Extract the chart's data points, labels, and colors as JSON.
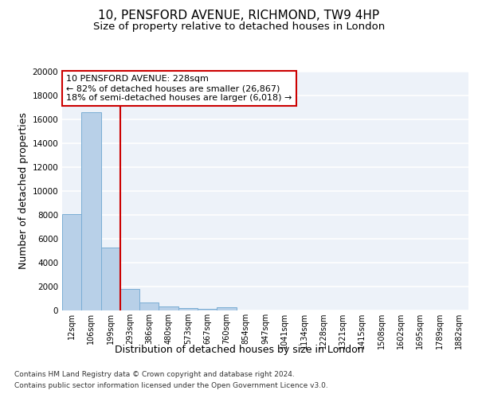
{
  "title1": "10, PENSFORD AVENUE, RICHMOND, TW9 4HP",
  "title2": "Size of property relative to detached houses in London",
  "xlabel": "Distribution of detached houses by size in London",
  "ylabel": "Number of detached properties",
  "categories": [
    "12sqm",
    "106sqm",
    "199sqm",
    "293sqm",
    "386sqm",
    "480sqm",
    "573sqm",
    "667sqm",
    "760sqm",
    "854sqm",
    "947sqm",
    "1041sqm",
    "1134sqm",
    "1228sqm",
    "1321sqm",
    "1415sqm",
    "1508sqm",
    "1602sqm",
    "1695sqm",
    "1789sqm",
    "1882sqm"
  ],
  "values": [
    8100,
    16600,
    5300,
    1800,
    700,
    350,
    230,
    110,
    280,
    0,
    0,
    0,
    0,
    0,
    0,
    0,
    0,
    0,
    0,
    0,
    0
  ],
  "bar_color": "#b8d0e8",
  "bar_edgecolor": "#7aadd4",
  "vline_x": 2.5,
  "vline_color": "#cc0000",
  "annotation_text": "10 PENSFORD AVENUE: 228sqm\n← 82% of detached houses are smaller (26,867)\n18% of semi-detached houses are larger (6,018) →",
  "annotation_box_color": "#cc0000",
  "ylim": [
    0,
    20000
  ],
  "yticks": [
    0,
    2000,
    4000,
    6000,
    8000,
    10000,
    12000,
    14000,
    16000,
    18000,
    20000
  ],
  "background_color": "#edf2f9",
  "footer1": "Contains HM Land Registry data © Crown copyright and database right 2024.",
  "footer2": "Contains public sector information licensed under the Open Government Licence v3.0.",
  "title_fontsize": 11,
  "subtitle_fontsize": 9.5,
  "axis_label_fontsize": 9,
  "tick_fontsize": 7,
  "annot_fontsize": 8
}
